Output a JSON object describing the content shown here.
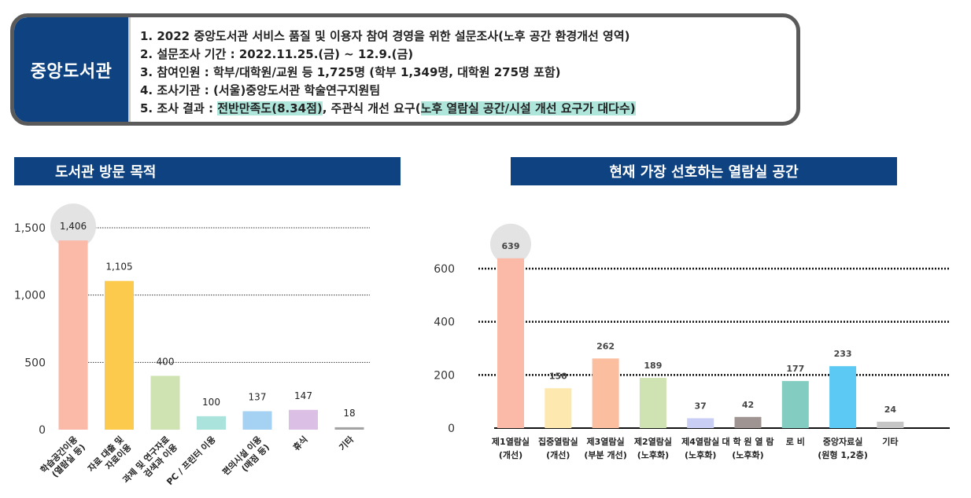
{
  "info": {
    "label": "중앙도서관",
    "line1": "1. 2022 중앙도서관 서비스 품질 및 이용자 참여 경영을 위한 설문조사(노후 공간 환경개선 영역)",
    "line2": "2. 설문조사 기간 : 2022.11.25.(금) ~ 12.9.(금)",
    "line3": "3. 참여인원 : 학부/대학원/교원 등 1,725명 (학부 1,349명, 대학원 275명 포함)",
    "line4": "4. 조사기관 : (서울)중앙도서관 학술연구지원팀",
    "line5_prefix": "5. 조사 결과 : ",
    "line5_hl1": "전반만족도(8.34점)",
    "line5_mid": ", 주관식 개선 요구(",
    "line5_hl2": "노후 열람실 공간/시설 개선 요구가 대다수)"
  },
  "chart_data": [
    {
      "type": "bar",
      "title": "도서관 방문 목적",
      "categories": [
        [
          "학습공간이용",
          "(열람실 등)"
        ],
        [
          "자료 대출 및",
          "자료이용"
        ],
        [
          "과제 및 연구자료",
          "검색과 이용"
        ],
        [
          "PC / 프린터 이용"
        ],
        [
          "편의시설 이용",
          "(매점 등)"
        ],
        [
          "휴식"
        ],
        [
          "기타"
        ]
      ],
      "values": [
        1406,
        1105,
        400,
        100,
        137,
        147,
        18
      ],
      "value_labels": [
        "1,406",
        "1,105",
        "400",
        "100",
        "137",
        "147",
        "18"
      ],
      "colors": [
        "#fbb9a8",
        "#fccb4e",
        "#cfe2b1",
        "#a9e3dc",
        "#a5d2f3",
        "#dcbfe4",
        "#a3a3a3"
      ],
      "yticks": [
        0,
        500,
        1000,
        1500
      ],
      "ytick_labels": [
        "0",
        "500",
        "1,000",
        "1,500"
      ],
      "ylim": [
        0,
        1500
      ],
      "highlight_index": 0
    },
    {
      "type": "bar",
      "title": "현재 가장 선호하는 열람실 공간",
      "categories": [
        [
          "제1열람실",
          "(개선)"
        ],
        [
          "집중열람실",
          "(개선)"
        ],
        [
          "제3열람실",
          "(부분 개선)"
        ],
        [
          "제2열람실",
          "(노후화)"
        ],
        [
          "제4열람실",
          "(노후화)"
        ],
        [
          "대 학 원 열 람",
          "(노후화)"
        ],
        [
          "로 비"
        ],
        [
          "중앙자료실",
          "(원형 1,2층)"
        ],
        [
          "기타"
        ]
      ],
      "values": [
        639,
        150,
        262,
        189,
        37,
        42,
        177,
        233,
        24
      ],
      "value_labels": [
        "639",
        "150",
        "262",
        "189",
        "37",
        "42",
        "177",
        "233",
        "24"
      ],
      "colors": [
        "#fbb9a8",
        "#fde8b0",
        "#fbbfa0",
        "#cfe2b1",
        "#c9cef4",
        "#a09492",
        "#82ccc1",
        "#5cc8f4",
        "#c6c6c6"
      ],
      "yticks": [
        0,
        200,
        400,
        600
      ],
      "ytick_labels": [
        "0",
        "200",
        "400",
        "600"
      ],
      "ylim": [
        0,
        600
      ],
      "highlight_index": 0
    }
  ]
}
